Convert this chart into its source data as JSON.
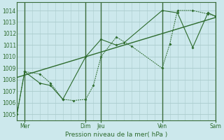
{
  "xlabel": "Pression niveau de la mer( hPa )",
  "bg_color": "#cce8ec",
  "grid_color": "#aacccc",
  "line_color": "#2d6b2d",
  "vline_color": "#3a6b3a",
  "ylim": [
    1004.5,
    1014.7
  ],
  "xlim": [
    0,
    130
  ],
  "yticks": [
    1005,
    1006,
    1007,
    1008,
    1009,
    1010,
    1011,
    1012,
    1013,
    1014
  ],
  "xtick_positions": [
    5,
    45,
    55,
    95,
    130
  ],
  "xtick_labels": [
    "Mer",
    "Dim",
    "Jeu",
    "Ven",
    "Sam"
  ],
  "vline_positions": [
    5,
    45,
    55,
    95,
    130
  ],
  "series_dotted": {
    "x": [
      0,
      5,
      15,
      22,
      30,
      37,
      45,
      50,
      55,
      65,
      75,
      95,
      100,
      105,
      115,
      125,
      130
    ],
    "y": [
      1005.0,
      1008.7,
      1008.5,
      1007.7,
      1006.3,
      1006.2,
      1006.3,
      1007.5,
      1010.0,
      1011.7,
      1010.9,
      1009.0,
      1011.1,
      1014.0,
      1014.0,
      1013.7,
      1013.5
    ]
  },
  "series_solid": {
    "x": [
      0,
      5,
      15,
      22,
      30,
      45,
      55,
      65,
      70,
      95,
      105,
      115,
      125,
      130
    ],
    "y": [
      1005.0,
      1008.7,
      1007.7,
      1007.5,
      1006.3,
      1010.0,
      1011.5,
      1011.0,
      1011.2,
      1014.0,
      1013.8,
      1010.8,
      1013.8,
      1013.5
    ]
  },
  "trend_line": {
    "x": [
      0,
      130
    ],
    "y": [
      1008.2,
      1013.4
    ]
  }
}
